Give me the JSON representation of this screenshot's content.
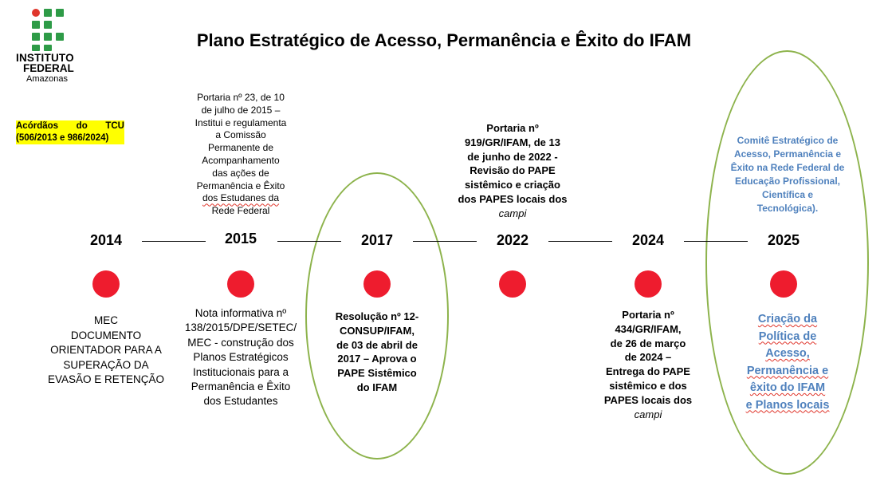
{
  "logo": {
    "line1": "INSTITUTO",
    "line2": "FEDERAL",
    "line3": "Amazonas"
  },
  "title": "Plano Estratégico de Acesso, Permanência e Êxito do IFAM",
  "tcu": [
    "Acórdãos do TCU",
    "(506/2013 e 986/2024)"
  ],
  "years": [
    "2014",
    "2015",
    "2017",
    "2022",
    "2024",
    "2025"
  ],
  "above": {
    "y2015": [
      "Portaria nº 23, de 10",
      "de julho de 2015 –",
      "Institui e regulamenta",
      "a Comissão",
      "Permanente de",
      "Acompanhamento",
      "das ações de",
      "Permanência e Êxito",
      "dos Estudanes da",
      "Rede Federal"
    ],
    "y2022": [
      "Portaria nº",
      "919/GR/IFAM, de 13",
      "de junho de 2022 -",
      "Revisão do PAPE",
      "sistêmico e criação",
      "dos PAPES locais dos",
      "campi"
    ],
    "y2025": [
      "Comitê Estratégico de",
      "Acesso, Permanência e",
      "Êxito na Rede Federal de",
      "Educação Profissional,",
      "Científica e",
      "Tecnológica)."
    ]
  },
  "below": {
    "y2014": [
      "MEC",
      "DOCUMENTO",
      "ORIENTADOR PARA A",
      "SUPERAÇÃO DA",
      "EVASÃO E RETENÇÃO"
    ],
    "y2015": [
      "Nota informativa nº",
      "138/2015/DPE/SETEC/",
      "MEC - construção dos",
      "Planos Estratégicos",
      "Institucionais para a",
      "Permanência e Êxito",
      "dos Estudantes"
    ],
    "y2017": [
      "Resolução nº 12-",
      "CONSUP/IFAM,",
      "de 03 de abril de",
      "2017 – Aprova o",
      "PAPE Sistêmico",
      "do IFAM"
    ],
    "y2024": [
      "Portaria nº",
      "434/GR/IFAM,",
      "de 26 de março",
      "de 2024 –",
      "Entrega do PAPE",
      "sistêmico e dos",
      "PAPES locais dos",
      "campi"
    ],
    "y2025": [
      "Criação da",
      "Política de",
      "Acesso,",
      "Permanência e",
      "êxito do IFAM",
      "e Planos locais"
    ]
  },
  "colors": {
    "dot": "#ee1c2e",
    "ellipse": "#8db34c",
    "highlight": "#ffff00",
    "accent_text": "#4f81bd",
    "logo_green": "#2e9b47",
    "logo_red": "#e0362c"
  }
}
